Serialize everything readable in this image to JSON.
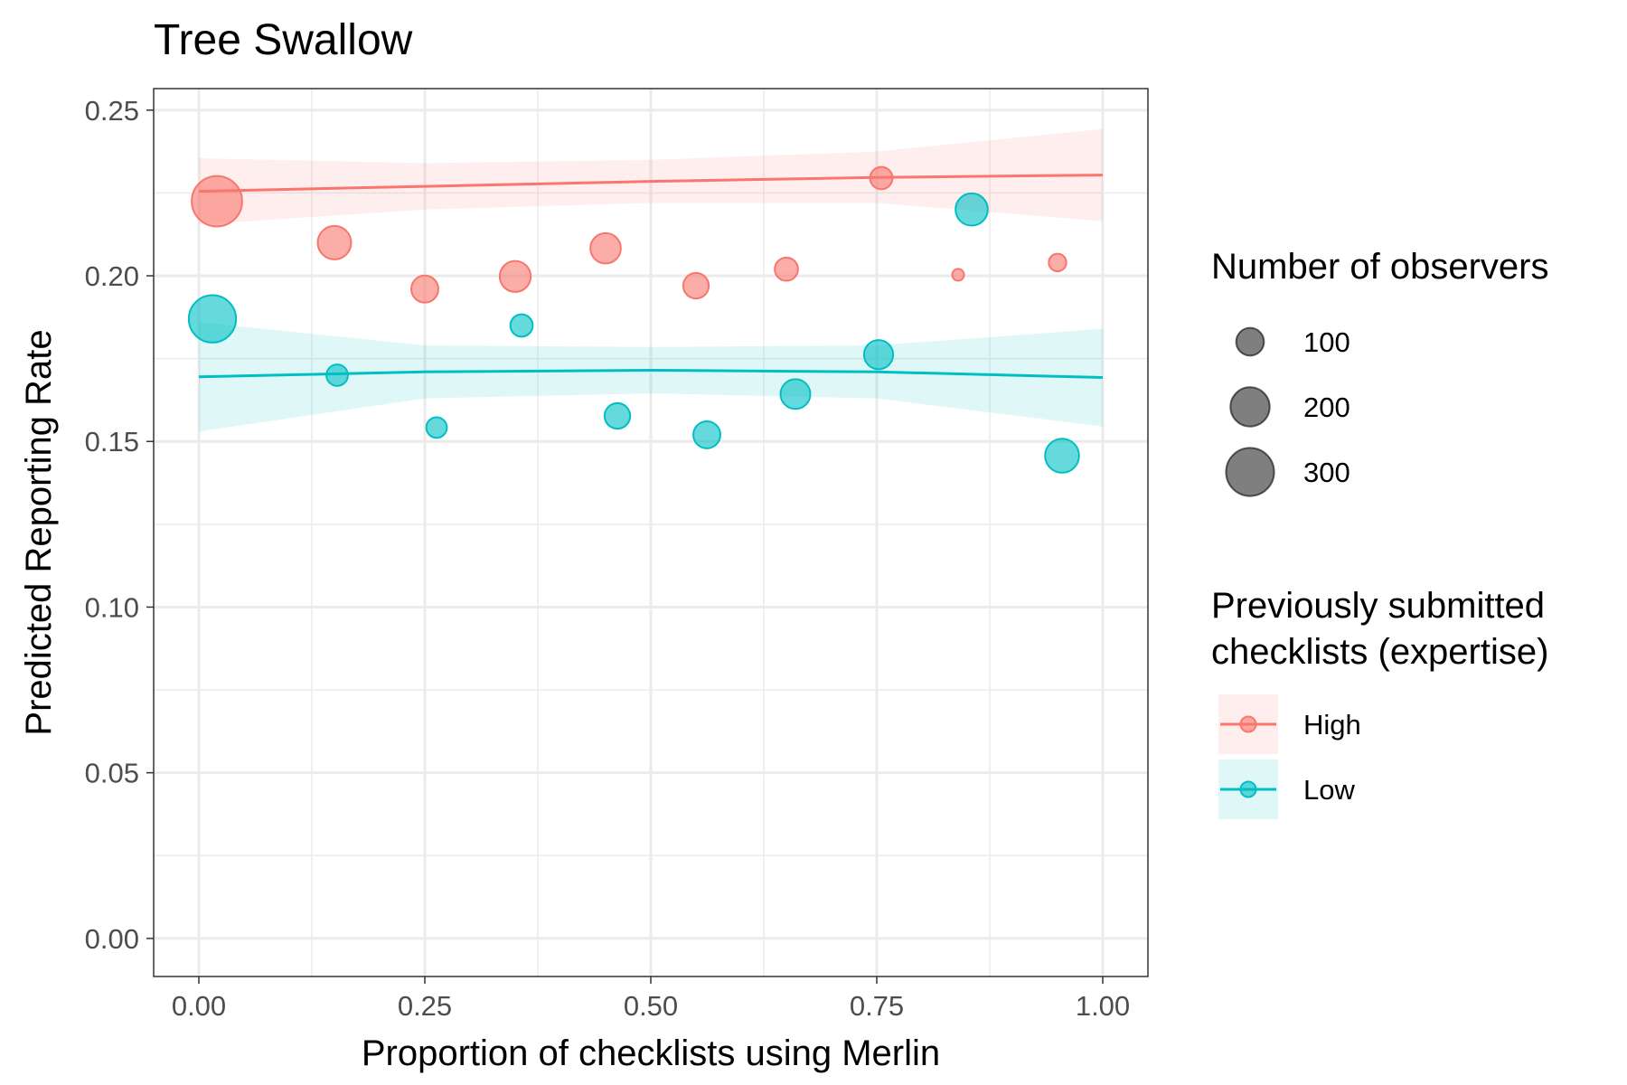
{
  "chart_data": {
    "type": "scatter",
    "title": "Tree Swallow",
    "xlabel": "Proportion of checklists using Merlin",
    "ylabel": "Predicted Reporting Rate",
    "xlim": [
      -0.05,
      1.05
    ],
    "ylim": [
      -0.0115,
      0.2565
    ],
    "x_ticks": [
      "0.00",
      "0.25",
      "0.50",
      "0.75",
      "1.00"
    ],
    "y_ticks": [
      "0.00",
      "0.05",
      "0.10",
      "0.15",
      "0.20",
      "0.25"
    ],
    "x_tick_values": [
      0,
      0.25,
      0.5,
      0.75,
      1.0
    ],
    "y_tick_values": [
      0,
      0.05,
      0.1,
      0.15,
      0.2,
      0.25
    ],
    "grid": true,
    "legend_position": "right",
    "size_legend": {
      "title": "Number of observers",
      "entries": [
        {
          "label": "100",
          "value": 100
        },
        {
          "label": "200",
          "value": 200
        },
        {
          "label": "300",
          "value": 300
        }
      ]
    },
    "color_legend": {
      "title_lines": [
        "Previously submitted",
        "checklists (expertise)"
      ],
      "entries": [
        {
          "label": "High",
          "color": "#F8766D"
        },
        {
          "label": "Low",
          "color": "#00BFC4"
        }
      ]
    },
    "series": [
      {
        "name": "High",
        "color": "#F8766D",
        "points": [
          {
            "x": 0.02,
            "y": 0.2225,
            "n": 330
          },
          {
            "x": 0.15,
            "y": 0.21,
            "n": 145
          },
          {
            "x": 0.25,
            "y": 0.196,
            "n": 95
          },
          {
            "x": 0.35,
            "y": 0.1998,
            "n": 125
          },
          {
            "x": 0.45,
            "y": 0.2083,
            "n": 120
          },
          {
            "x": 0.55,
            "y": 0.197,
            "n": 85
          },
          {
            "x": 0.65,
            "y": 0.202,
            "n": 70
          },
          {
            "x": 0.755,
            "y": 0.2295,
            "n": 65
          },
          {
            "x": 0.84,
            "y": 0.2003,
            "n": 18
          },
          {
            "x": 0.95,
            "y": 0.204,
            "n": 40
          }
        ],
        "fit": [
          {
            "x": 0.0,
            "y": 0.2255
          },
          {
            "x": 0.25,
            "y": 0.227
          },
          {
            "x": 0.5,
            "y": 0.2285
          },
          {
            "x": 0.75,
            "y": 0.2297
          },
          {
            "x": 1.0,
            "y": 0.2304
          }
        ],
        "ci": [
          {
            "x": 0.0,
            "lo": 0.2155,
            "hi": 0.2355
          },
          {
            "x": 0.25,
            "lo": 0.22,
            "hi": 0.234
          },
          {
            "x": 0.5,
            "lo": 0.222,
            "hi": 0.235
          },
          {
            "x": 0.75,
            "lo": 0.222,
            "hi": 0.2375
          },
          {
            "x": 1.0,
            "lo": 0.2165,
            "hi": 0.2443
          }
        ]
      },
      {
        "name": "Low",
        "color": "#00BFC4",
        "points": [
          {
            "x": 0.015,
            "y": 0.187,
            "n": 290
          },
          {
            "x": 0.153,
            "y": 0.17,
            "n": 60
          },
          {
            "x": 0.263,
            "y": 0.1542,
            "n": 55
          },
          {
            "x": 0.357,
            "y": 0.185,
            "n": 65
          },
          {
            "x": 0.463,
            "y": 0.1577,
            "n": 85
          },
          {
            "x": 0.562,
            "y": 0.152,
            "n": 95
          },
          {
            "x": 0.66,
            "y": 0.1643,
            "n": 115
          },
          {
            "x": 0.752,
            "y": 0.1762,
            "n": 110
          },
          {
            "x": 0.855,
            "y": 0.22,
            "n": 135
          },
          {
            "x": 0.955,
            "y": 0.1457,
            "n": 150
          }
        ],
        "fit": [
          {
            "x": 0.0,
            "y": 0.1695
          },
          {
            "x": 0.25,
            "y": 0.171
          },
          {
            "x": 0.5,
            "y": 0.1715
          },
          {
            "x": 0.75,
            "y": 0.171
          },
          {
            "x": 1.0,
            "y": 0.1693
          }
        ],
        "ci": [
          {
            "x": 0.0,
            "lo": 0.153,
            "hi": 0.186
          },
          {
            "x": 0.25,
            "lo": 0.163,
            "hi": 0.179
          },
          {
            "x": 0.5,
            "lo": 0.1645,
            "hi": 0.1785
          },
          {
            "x": 0.75,
            "lo": 0.163,
            "hi": 0.179
          },
          {
            "x": 1.0,
            "lo": 0.1545,
            "hi": 0.184
          }
        ]
      }
    ]
  }
}
